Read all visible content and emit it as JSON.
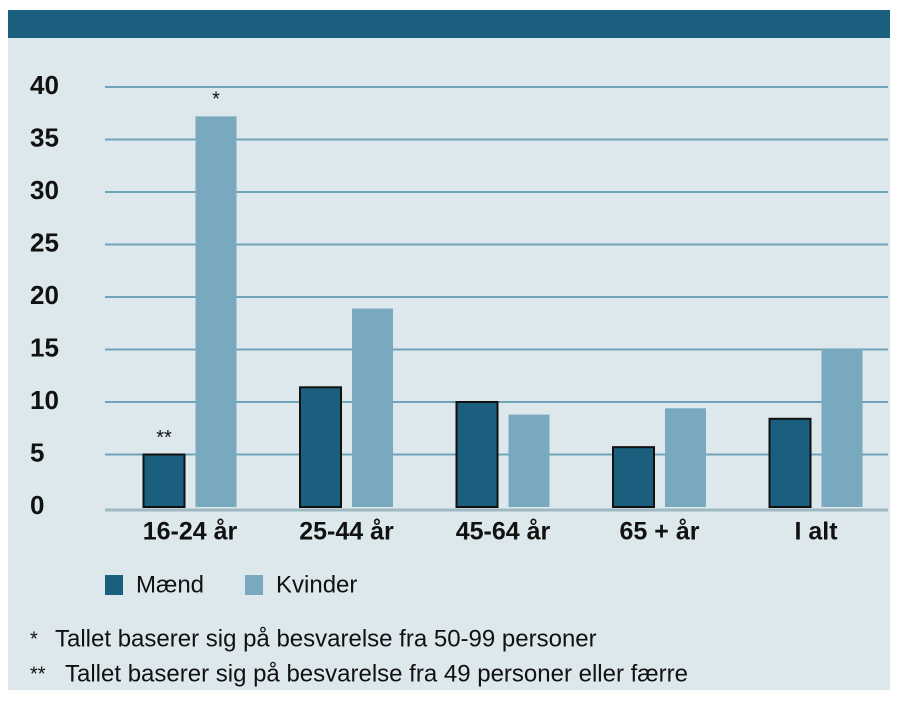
{
  "chart_data": {
    "type": "bar",
    "categories": [
      "16-24 år",
      "25-44 år",
      "45-64 år",
      "65 + år",
      "I alt"
    ],
    "series": [
      {
        "name": "Mænd",
        "color": "#1a5f7e",
        "values": [
          5,
          11.4,
          10,
          5.7,
          8.4
        ]
      },
      {
        "name": "Kvinder",
        "color": "#79a9bf",
        "values": [
          37.2,
          18.9,
          8.8,
          9.4,
          15
        ]
      }
    ],
    "ylim": [
      0,
      40
    ],
    "yticks": [
      0,
      5,
      10,
      15,
      20,
      25,
      30,
      35,
      40
    ],
    "grid": true,
    "annotations": [
      {
        "text": "**",
        "series": 0,
        "category": 0
      },
      {
        "text": "*",
        "series": 1,
        "category": 0
      }
    ],
    "footnotes": [
      "Tallet baserer sig på besvarelse fra 50-99 personer",
      "Tallet baserer sig på besvarelse fra 49 personer eller færre"
    ],
    "footnote_marks": [
      "*",
      "**"
    ]
  }
}
